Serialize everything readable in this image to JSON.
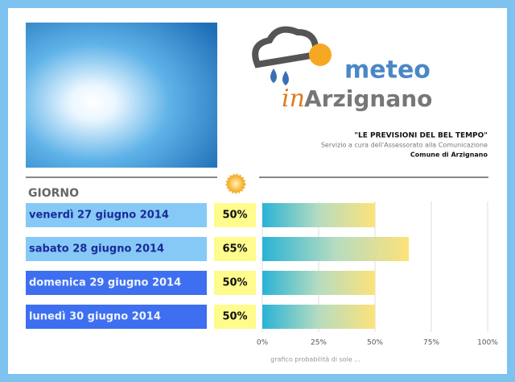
{
  "header": {
    "logo_top": "meteo",
    "logo_in": "in",
    "logo_town": "Arzignano",
    "tagline": "\"LE PREVISIONI DEL BEL TEMPO\"",
    "service": "Servizio a cura dell'Assessorato alla Comunicazione",
    "municipality": "Comune di Arzignano"
  },
  "chart_data": {
    "type": "hbar",
    "column_header": "GIORNO",
    "categories": [
      "venerdì 27 giugno 2014",
      "sabato 28 giugno 2014",
      "domenica 29 giugno 2014",
      "lunedì 30 giugno 2014"
    ],
    "category_colors": [
      "#86c9f6",
      "#86c9f6",
      "#3d6ff0",
      "#3d6ff0"
    ],
    "values": [
      50,
      65,
      50,
      50
    ],
    "value_labels": [
      "50%",
      "65%",
      "50%",
      "50%"
    ],
    "xlim": [
      0,
      100
    ],
    "xticks": [
      {
        "value": 0,
        "label": "0%"
      },
      {
        "value": 25,
        "label": "25%"
      },
      {
        "value": 50,
        "label": "50%"
      },
      {
        "value": 75,
        "label": "75%"
      },
      {
        "value": 100,
        "label": "100%"
      }
    ],
    "grid": true,
    "caption": "grafico probabilità di sole ..."
  }
}
